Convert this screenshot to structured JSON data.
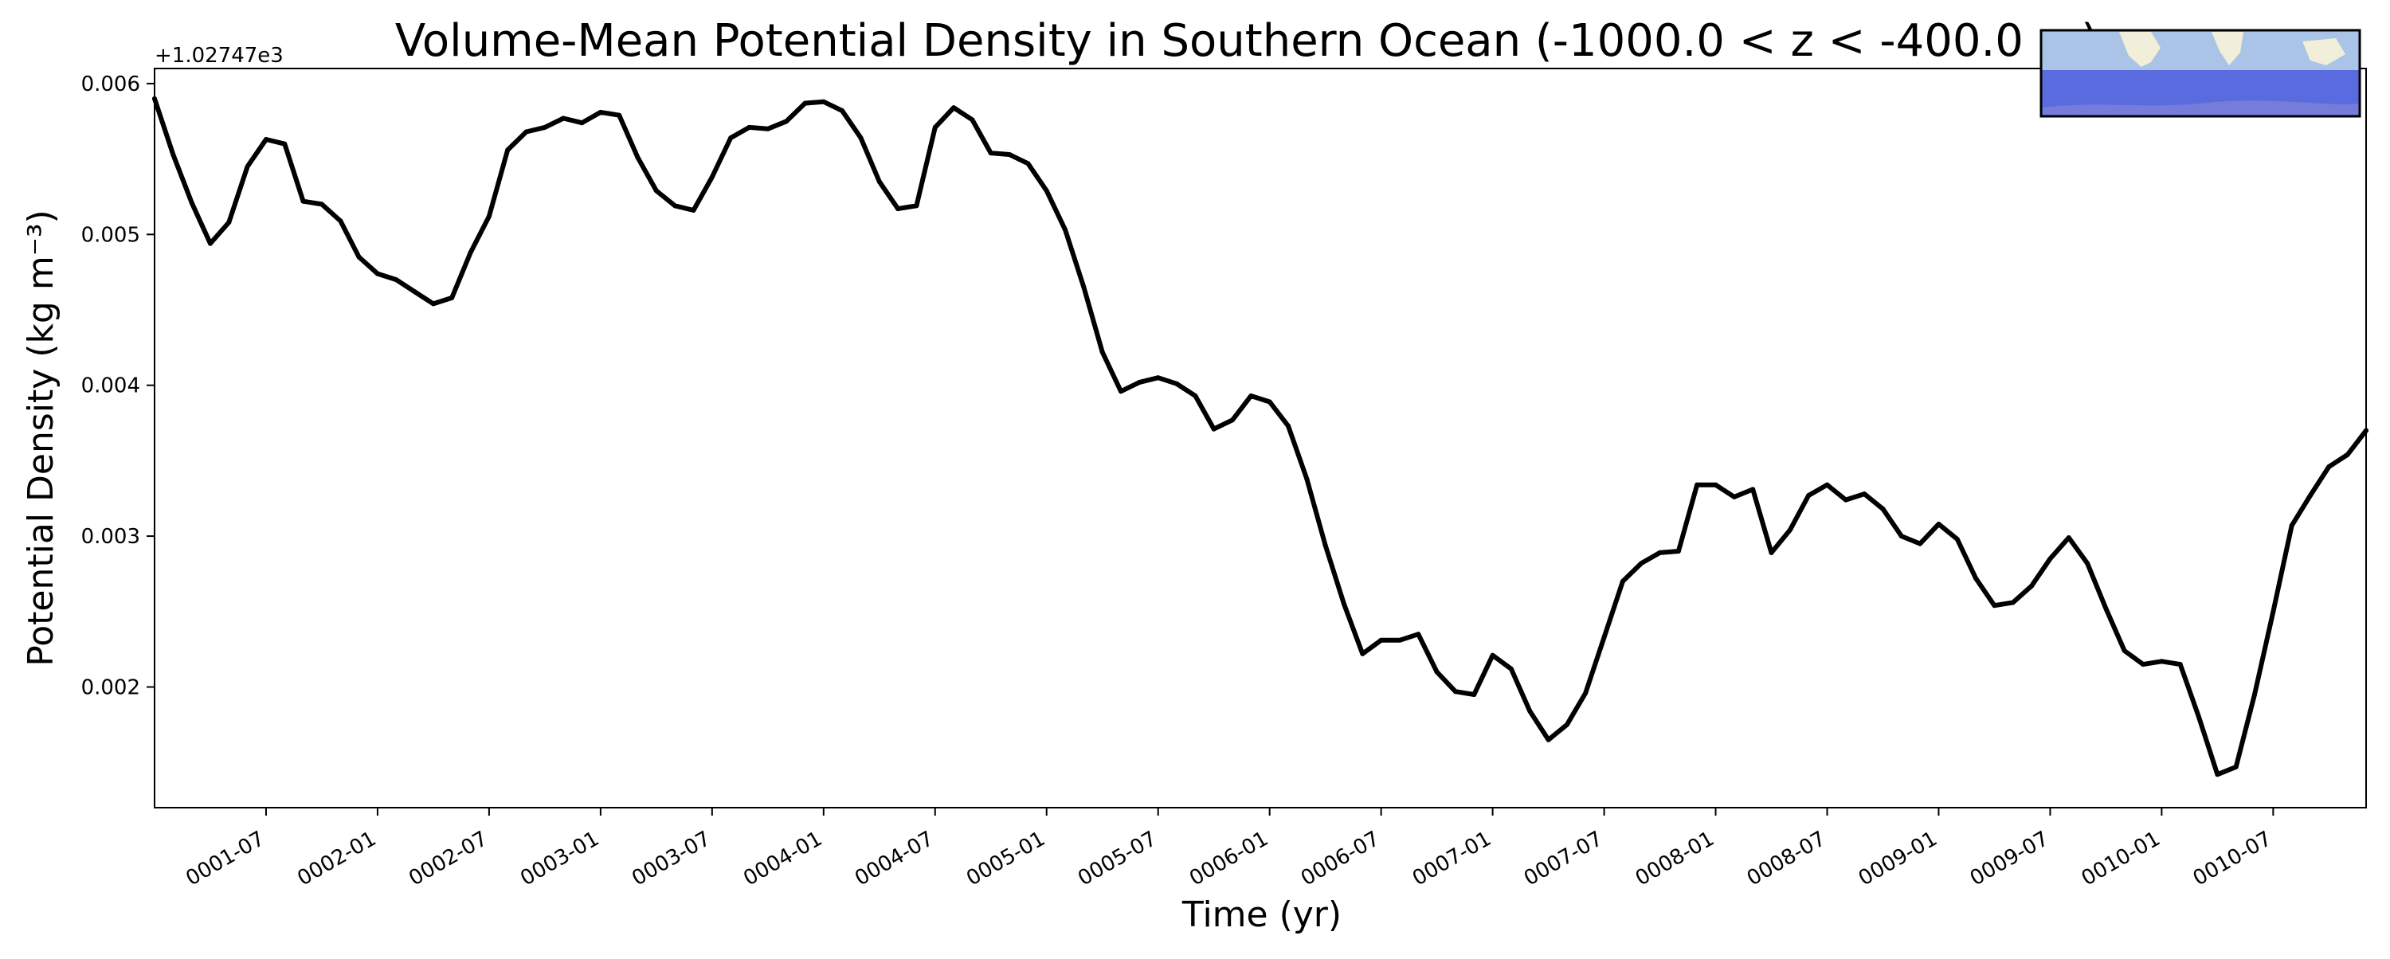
{
  "chart_data": {
    "type": "line",
    "title": "Volume-Mean Potential Density in Southern Ocean (-1000.0 < z < -400.0 m)",
    "xlabel": "Time (yr)",
    "ylabel": "Potential Density (kg m⁻³)",
    "y_offset_label": "+1.02747e3",
    "xlim": [
      "0001-01",
      "0010-12"
    ],
    "ylim": [
      0.0012,
      0.0061
    ],
    "x_ticks": [
      "0001-07",
      "0002-01",
      "0002-07",
      "0003-01",
      "0003-07",
      "0004-01",
      "0004-07",
      "0005-01",
      "0005-07",
      "0006-01",
      "0006-07",
      "0007-01",
      "0007-07",
      "0008-01",
      "0008-07",
      "0009-01",
      "0009-07",
      "0010-01",
      "0010-07"
    ],
    "y_ticks": [
      "0.002",
      "0.003",
      "0.004",
      "0.005",
      "0.006"
    ],
    "grid": false,
    "legend": "none",
    "inset": "map-of-southern-ocean-region-top-right",
    "series": [
      {
        "color": "#000000",
        "x": [
          "0001-01",
          "0001-02",
          "0001-03",
          "0001-04",
          "0001-05",
          "0001-06",
          "0001-07",
          "0001-08",
          "0001-09",
          "0001-10",
          "0001-11",
          "0001-12",
          "0002-01",
          "0002-02",
          "0002-03",
          "0002-04",
          "0002-05",
          "0002-06",
          "0002-07",
          "0002-08",
          "0002-09",
          "0002-10",
          "0002-11",
          "0002-12",
          "0003-01",
          "0003-02",
          "0003-03",
          "0003-04",
          "0003-05",
          "0003-06",
          "0003-07",
          "0003-08",
          "0003-09",
          "0003-10",
          "0003-11",
          "0003-12",
          "0004-01",
          "0004-02",
          "0004-03",
          "0004-04",
          "0004-05",
          "0004-06",
          "0004-07",
          "0004-08",
          "0004-09",
          "0004-10",
          "0004-11",
          "0004-12",
          "0005-01",
          "0005-02",
          "0005-03",
          "0005-04",
          "0005-05",
          "0005-06",
          "0005-07",
          "0005-08",
          "0005-09",
          "0005-10",
          "0005-11",
          "0005-12",
          "0006-01",
          "0006-02",
          "0006-03",
          "0006-04",
          "0006-05",
          "0006-06",
          "0006-07",
          "0006-08",
          "0006-09",
          "0006-10",
          "0006-11",
          "0006-12",
          "0007-01",
          "0007-02",
          "0007-03",
          "0007-04",
          "0007-05",
          "0007-06",
          "0007-07",
          "0007-08",
          "0007-09",
          "0007-10",
          "0007-11",
          "0007-12",
          "0008-01",
          "0008-02",
          "0008-03",
          "0008-04",
          "0008-05",
          "0008-06",
          "0008-07",
          "0008-08",
          "0008-09",
          "0008-10",
          "0008-11",
          "0008-12",
          "0009-01",
          "0009-02",
          "0009-03",
          "0009-04",
          "0009-05",
          "0009-06",
          "0009-07",
          "0009-08",
          "0009-09",
          "0009-10",
          "0009-11",
          "0009-12",
          "0010-01",
          "0010-02",
          "0010-03",
          "0010-04",
          "0010-05",
          "0010-06",
          "0010-07",
          "0010-08",
          "0010-09",
          "0010-10",
          "0010-11",
          "0010-12"
        ],
        "values": [
          0.0059,
          0.00553,
          0.00521,
          0.00494,
          0.00508,
          0.00545,
          0.00563,
          0.0056,
          0.00522,
          0.0052,
          0.00509,
          0.00485,
          0.00474,
          0.0047,
          0.00462,
          0.00454,
          0.00458,
          0.00488,
          0.00512,
          0.00556,
          0.00568,
          0.00571,
          0.00577,
          0.00574,
          0.00581,
          0.00579,
          0.00551,
          0.00529,
          0.00519,
          0.00516,
          0.00538,
          0.00564,
          0.00571,
          0.0057,
          0.00575,
          0.00587,
          0.00588,
          0.00582,
          0.00564,
          0.00535,
          0.00517,
          0.00519,
          0.00571,
          0.00584,
          0.00576,
          0.00554,
          0.00553,
          0.00547,
          0.00529,
          0.00503,
          0.00465,
          0.00422,
          0.00396,
          0.00402,
          0.00405,
          0.00401,
          0.00393,
          0.00371,
          0.00377,
          0.00393,
          0.00389,
          0.00373,
          0.00338,
          0.00294,
          0.00255,
          0.00222,
          0.00231,
          0.00231,
          0.00235,
          0.0021,
          0.00197,
          0.00195,
          0.00221,
          0.00212,
          0.00184,
          0.00165,
          0.00175,
          0.00196,
          0.00233,
          0.0027,
          0.00282,
          0.00289,
          0.0029,
          0.00334,
          0.00334,
          0.00326,
          0.00331,
          0.00289,
          0.00304,
          0.00327,
          0.00334,
          0.00324,
          0.00328,
          0.00318,
          0.003,
          0.00295,
          0.00308,
          0.00298,
          0.00272,
          0.00254,
          0.00256,
          0.00267,
          0.00285,
          0.00299,
          0.00282,
          0.00252,
          0.00224,
          0.00215,
          0.00217,
          0.00215,
          0.0018,
          0.00142,
          0.00147,
          0.00195,
          0.0025,
          0.00307,
          0.00327,
          0.00346,
          0.00354,
          0.0037
        ]
      }
    ]
  }
}
